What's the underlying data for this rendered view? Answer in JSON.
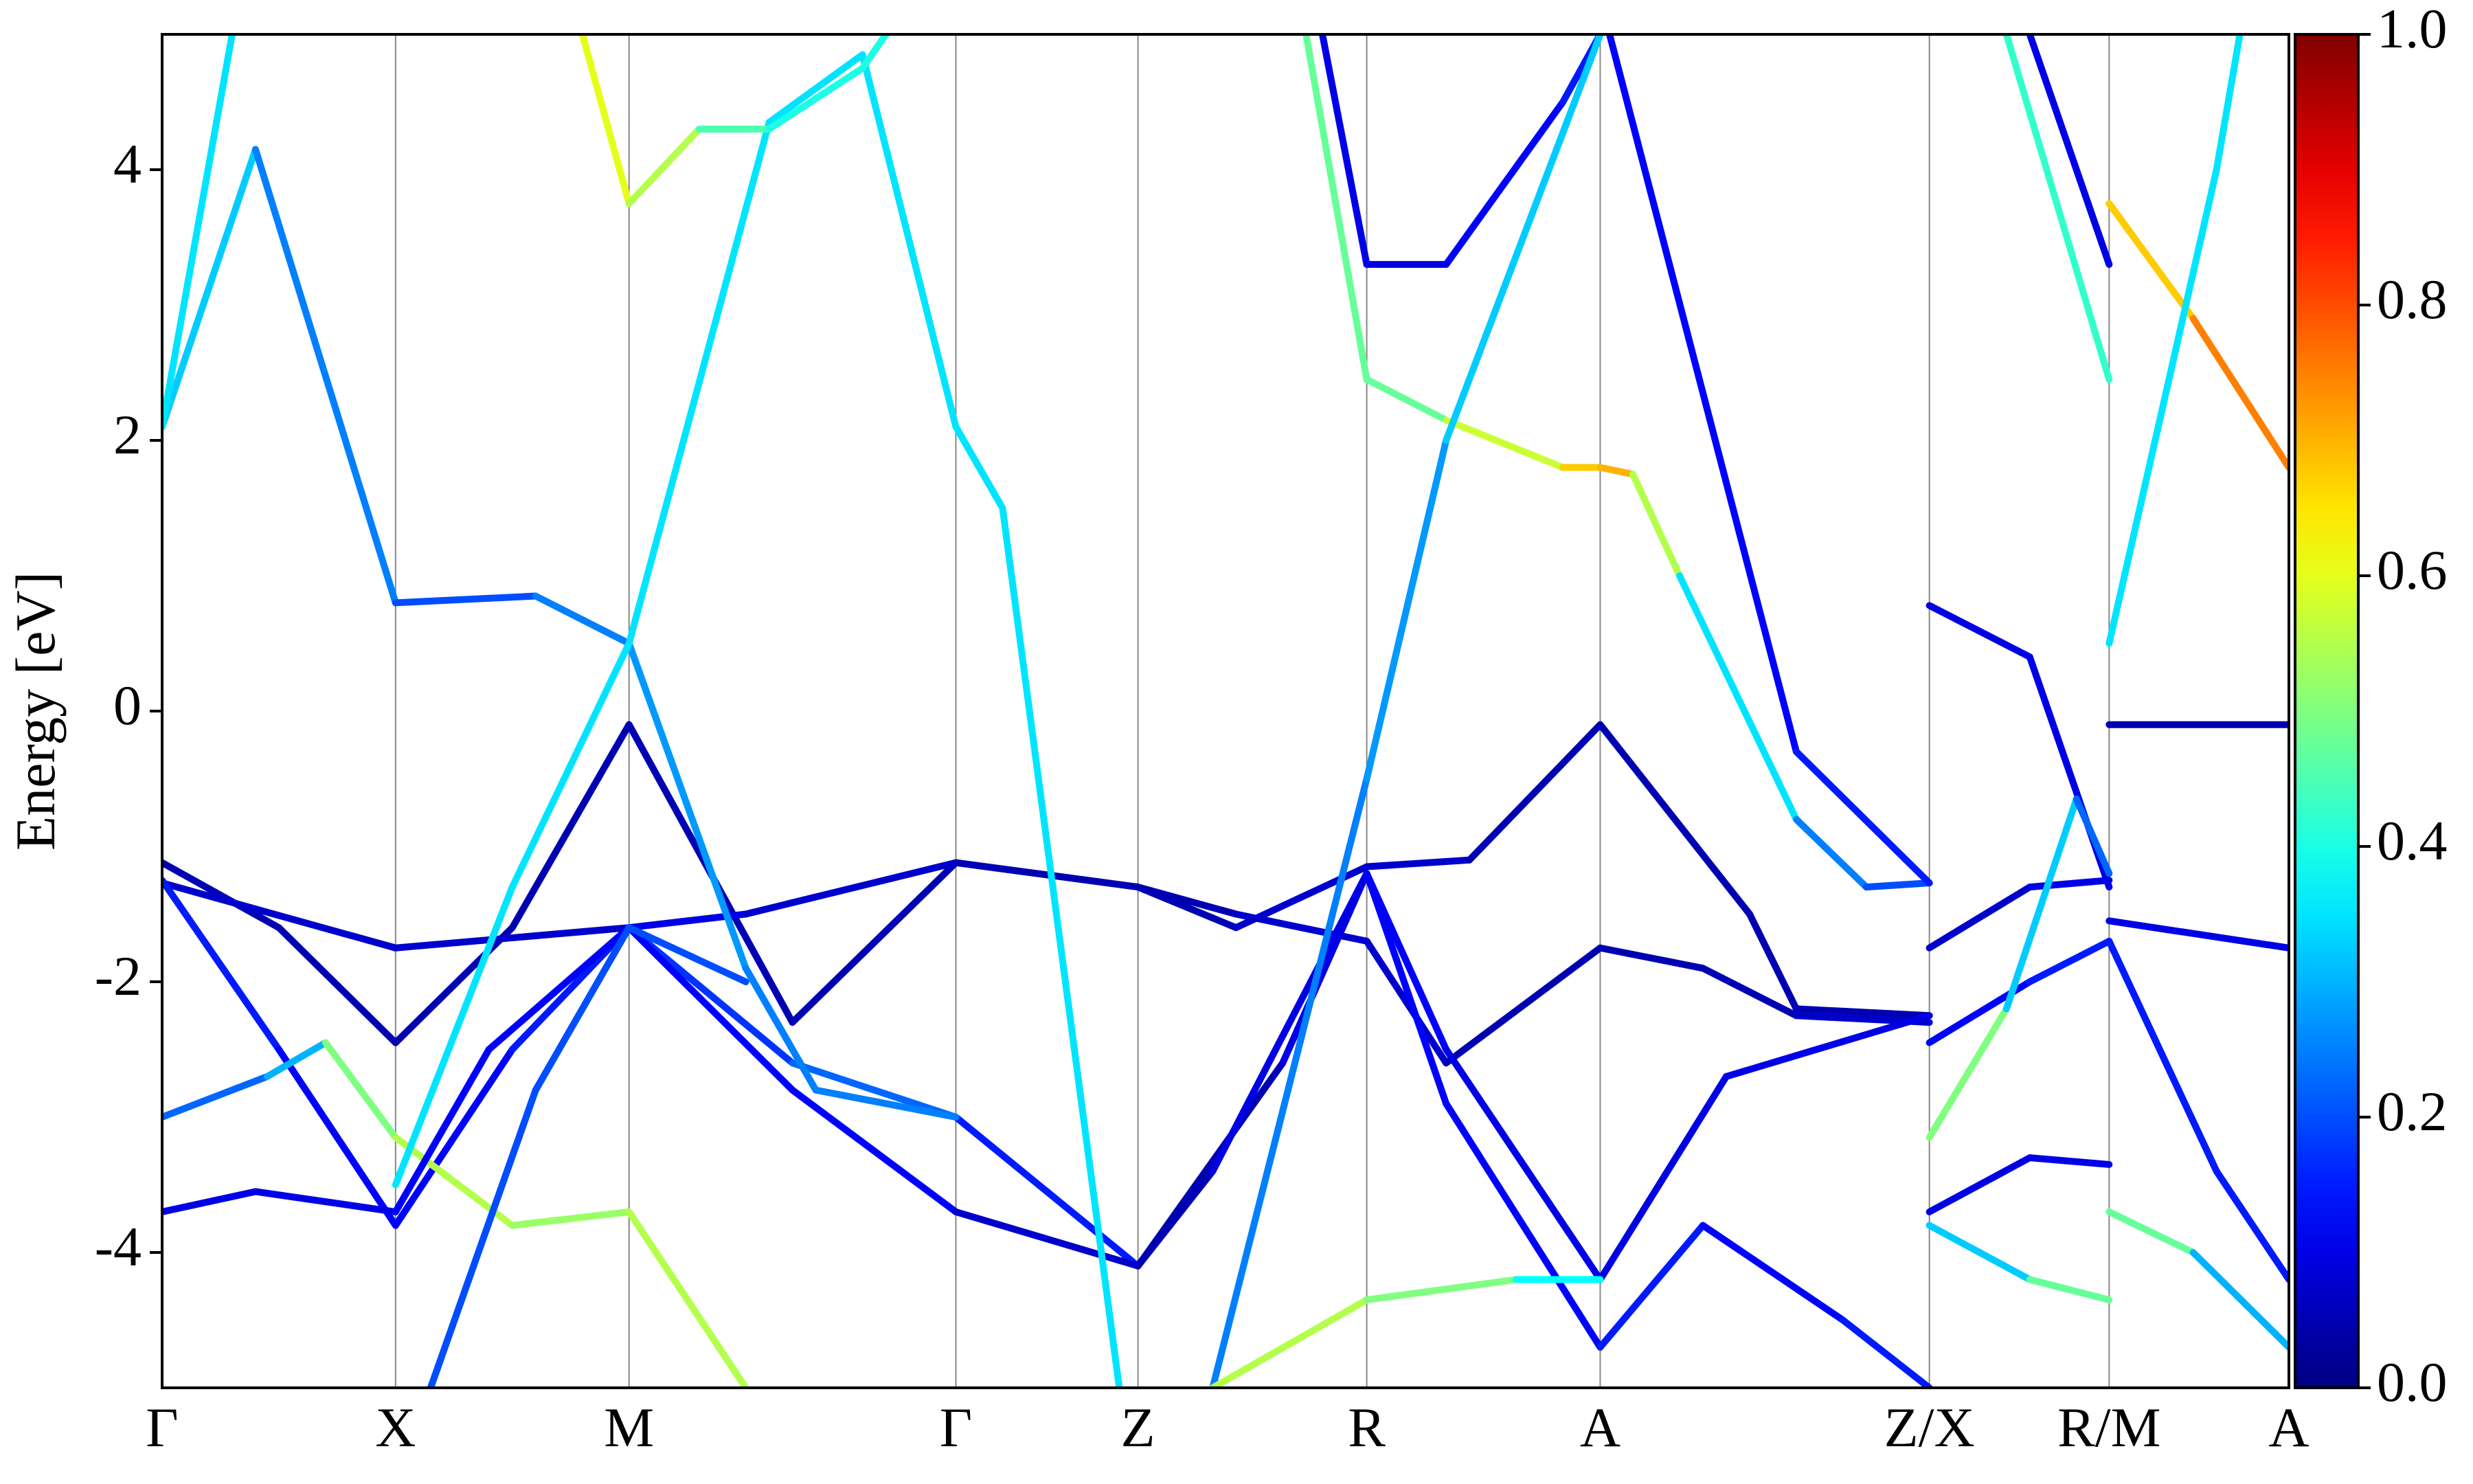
{
  "chart_data": {
    "type": "band",
    "ylabel": "Energy [eV]",
    "xlim": [
      0,
      9.11
    ],
    "ylim": [
      -5,
      5
    ],
    "xticks": [
      {
        "value": 0,
        "label": "Γ"
      },
      {
        "value": 1,
        "label": "X"
      },
      {
        "value": 2,
        "label": "M"
      },
      {
        "value": 3.4,
        "label": "Γ"
      },
      {
        "value": 4.18,
        "label": "Z"
      },
      {
        "value": 5.16,
        "label": "R"
      },
      {
        "value": 6.16,
        "label": "A"
      },
      {
        "value": 7.57,
        "label": "Z/X"
      },
      {
        "value": 8.34,
        "label": "R/M"
      },
      {
        "value": 9.11,
        "label": "A"
      }
    ],
    "yticks": [
      -4,
      -2,
      0,
      2,
      4
    ],
    "grid": true,
    "colorbar": {
      "cmap": "jet",
      "lim": [
        0,
        1
      ],
      "ticks": [
        {
          "value": 0,
          "label": "0.0"
        },
        0.2,
        0.4,
        0.6,
        0.8,
        {
          "value": 1,
          "label": "1.0"
        }
      ]
    },
    "series": [
      {
        "x": [
          0,
          0.5,
          1,
          1.5,
          2,
          2.7,
          3.4,
          4.18,
          4.6,
          5.16,
          5.6,
          6.16,
          6.8,
          7.0,
          7.57
        ],
        "values": [
          -1.12,
          -1.6,
          -2.45,
          -1.6,
          -0.1,
          -2.3,
          -1.12,
          -1.3,
          -1.6,
          -1.15,
          -1.1,
          -0.1,
          -1.5,
          -2.2,
          -2.25
        ],
        "weights": [
          0.05,
          0.05,
          0.05,
          0.05,
          0.05,
          0.05,
          0.05,
          0.05,
          0.05,
          0.1,
          0.05,
          0.05,
          0.05,
          0.05,
          0.05
        ]
      },
      {
        "x": [
          0,
          1,
          2,
          2.5,
          3.4,
          4.18,
          4.6,
          5.16,
          5.5,
          6.16,
          6.6,
          7.0,
          7.57
        ],
        "values": [
          -1.27,
          -1.75,
          -1.6,
          -1.5,
          -1.12,
          -1.3,
          -1.5,
          -1.7,
          -2.6,
          -1.75,
          -1.9,
          -2.25,
          -2.3
        ],
        "weights": [
          0.1,
          0.05,
          0.1,
          0.1,
          0.05,
          0.05,
          0.05,
          0.1,
          0.05,
          0.05,
          0.05,
          0.05,
          0.1
        ]
      },
      {
        "x": [
          0,
          0.5,
          1,
          1.5,
          2,
          2.7,
          3.4,
          4.18,
          4.8,
          5.16,
          5.5,
          6.16,
          6.6,
          7.2,
          7.57
        ],
        "values": [
          -1.25,
          -2.5,
          -3.8,
          -2.5,
          -1.6,
          -2.6,
          -3.0,
          -4.1,
          -2.6,
          -1.2,
          -2.9,
          -4.7,
          -3.8,
          -4.5,
          -5.0
        ],
        "weights": [
          0.15,
          0.15,
          0.1,
          0.15,
          0.15,
          0.2,
          0.25,
          0.05,
          0.05,
          0.15,
          0.1,
          0.15,
          0.15,
          0.1,
          0.2
        ]
      },
      {
        "x": [
          0,
          0.45,
          0.7,
          1,
          1.5,
          2,
          2.5
        ],
        "values": [
          -3.0,
          -2.7,
          -2.45,
          -3.15,
          -3.8,
          -3.7,
          -5.0
        ],
        "weights": [
          0.25,
          0.2,
          0.4,
          0.6,
          0.5,
          0.55,
          0.55
        ]
      },
      {
        "x": [
          0,
          0.4,
          1,
          1.4,
          2,
          2.7,
          3.4,
          4.18,
          4.5,
          5.16,
          5.5,
          6.16,
          6.7,
          7.57
        ],
        "values": [
          -3.7,
          -3.55,
          -3.7,
          -2.5,
          -1.6,
          -2.8,
          -3.7,
          -4.1,
          -3.4,
          -1.2,
          -2.5,
          -4.2,
          -2.7,
          -2.25
        ],
        "weights": [
          0.1,
          0.1,
          0.1,
          0.15,
          0.1,
          0.15,
          0.1,
          0.05,
          0.05,
          0.15,
          0.1,
          0.1,
          0.1,
          0.1
        ]
      },
      {
        "x": [
          0,
          0.4,
          1,
          1.6,
          2,
          2.5,
          2.8,
          3.4
        ],
        "values": [
          2.1,
          4.15,
          0.8,
          0.85,
          0.5,
          -1.9,
          -2.8,
          -3.0
        ],
        "weights": [
          0.35,
          0.3,
          0.2,
          0.2,
          0.3,
          0.25,
          0.25,
          0.25
        ]
      },
      {
        "x": [
          1.15,
          1.6,
          2,
          2.5
        ],
        "values": [
          -5,
          -2.8,
          -1.6,
          -2.0
        ],
        "weights": [
          0.2,
          0.2,
          0.2,
          0.2
        ]
      },
      {
        "x": [
          0,
          0.3
        ],
        "values": [
          2.1,
          5
        ],
        "weights": [
          0.35,
          0.35
        ]
      },
      {
        "x": [
          1,
          1.5,
          2,
          2.6,
          3.0,
          3.4,
          3.6,
          4.1
        ],
        "values": [
          -3.5,
          -1.3,
          0.5,
          4.35,
          4.85,
          2.1,
          1.5,
          -5
        ],
        "weights": [
          0.35,
          0.35,
          0.35,
          0.35,
          0.35,
          0.35,
          0.35,
          0.35
        ]
      },
      {
        "x": [
          1.8,
          2,
          2.3,
          2.6,
          3.0,
          3.1
        ],
        "values": [
          5,
          3.75,
          4.3,
          4.3,
          4.75,
          5
        ],
        "weights": [
          0.6,
          0.6,
          0.5,
          0.4,
          0.4,
          0.4
        ]
      },
      {
        "x": [
          4.9,
          5.16,
          5.5,
          6.0,
          6.16,
          6.3,
          6.5,
          7.0,
          7.3,
          7.57
        ],
        "values": [
          5,
          2.45,
          2.15,
          1.8,
          1.8,
          1.75,
          1.0,
          -0.8,
          -1.3,
          -1.27
        ],
        "weights": [
          0.5,
          0.45,
          0.5,
          0.65,
          0.7,
          0.7,
          0.4,
          0.3,
          0.2,
          0.2
        ]
      },
      {
        "x": [
          4.97,
          5.16,
          5.5,
          6.0,
          6.16
        ],
        "values": [
          5,
          3.3,
          3.3,
          4.5,
          5
        ],
        "weights": [
          0.1,
          0.1,
          0.1,
          0.15,
          0.15
        ]
      },
      {
        "x": [
          4.5,
          5.16,
          5.5,
          6.16
        ],
        "values": [
          -5,
          -0.5,
          2.0,
          5
        ],
        "weights": [
          0.25,
          0.25,
          0.3,
          0.35
        ]
      },
      {
        "x": [
          4.5,
          5.16,
          5.8,
          6.16
        ],
        "values": [
          -5,
          -4.35,
          -4.2,
          -4.2
        ],
        "weights": [
          0.55,
          0.55,
          0.45,
          0.3
        ]
      },
      {
        "x": [
          6.2,
          7.0,
          7.57
        ],
        "values": [
          5,
          -0.3,
          -1.27
        ],
        "weights": [
          0.1,
          0.15,
          0.15
        ]
      },
      {
        "x": [
          7.57,
          8.0,
          8.34
        ],
        "values": [
          0.78,
          0.4,
          -1.3
        ],
        "weights": [
          0.1,
          0.1,
          0.1
        ]
      },
      {
        "x": [
          7.57,
          8.0,
          8.34
        ],
        "values": [
          -1.75,
          -1.3,
          -1.25
        ],
        "weights": [
          0.05,
          0.1,
          0.1
        ]
      },
      {
        "x": [
          7.57,
          8.0,
          8.34
        ],
        "values": [
          -2.45,
          -2.0,
          -1.7
        ],
        "weights": [
          0.1,
          0.15,
          0.15
        ]
      },
      {
        "x": [
          7.57,
          7.9,
          8.2,
          8.34
        ],
        "values": [
          -3.15,
          -2.2,
          -0.65,
          -1.2
        ],
        "weights": [
          0.6,
          0.4,
          0.25,
          0.2
        ]
      },
      {
        "x": [
          7.57,
          8.0,
          8.34
        ],
        "values": [
          -3.7,
          -3.3,
          -3.35
        ],
        "weights": [
          0.1,
          0.1,
          0.1
        ]
      },
      {
        "x": [
          7.57,
          8.0,
          8.34
        ],
        "values": [
          -3.8,
          -4.2,
          -4.35
        ],
        "weights": [
          0.25,
          0.4,
          0.55
        ]
      },
      {
        "x": [
          8.0,
          8.34
        ],
        "values": [
          5,
          3.3
        ],
        "weights": [
          0.1,
          0.1
        ]
      },
      {
        "x": [
          7.9,
          8.34
        ],
        "values": [
          5,
          2.45
        ],
        "weights": [
          0.4,
          0.45
        ]
      },
      {
        "x": [
          8.34,
          8.7,
          9.11
        ],
        "values": [
          3.75,
          2.9,
          1.8
        ],
        "weights": [
          0.65,
          0.7,
          0.8
        ]
      },
      {
        "x": [
          8.34,
          8.8,
          8.9
        ],
        "values": [
          0.5,
          4,
          5
        ],
        "weights": [
          0.35,
          0.35,
          0.35
        ]
      },
      {
        "x": [
          8.34,
          9.11
        ],
        "values": [
          -0.1,
          -0.1
        ],
        "weights": [
          0.05,
          0.05
        ]
      },
      {
        "x": [
          8.34,
          9.11
        ],
        "values": [
          -1.55,
          -1.75
        ],
        "weights": [
          0.1,
          0.1
        ]
      },
      {
        "x": [
          8.34,
          8.8,
          9.11
        ],
        "values": [
          -1.7,
          -3.4,
          -4.2
        ],
        "weights": [
          0.15,
          0.15,
          0.15
        ]
      },
      {
        "x": [
          8.34,
          8.7,
          9.11
        ],
        "values": [
          -3.7,
          -4.0,
          -4.7
        ],
        "weights": [
          0.55,
          0.4,
          0.2
        ]
      }
    ]
  }
}
